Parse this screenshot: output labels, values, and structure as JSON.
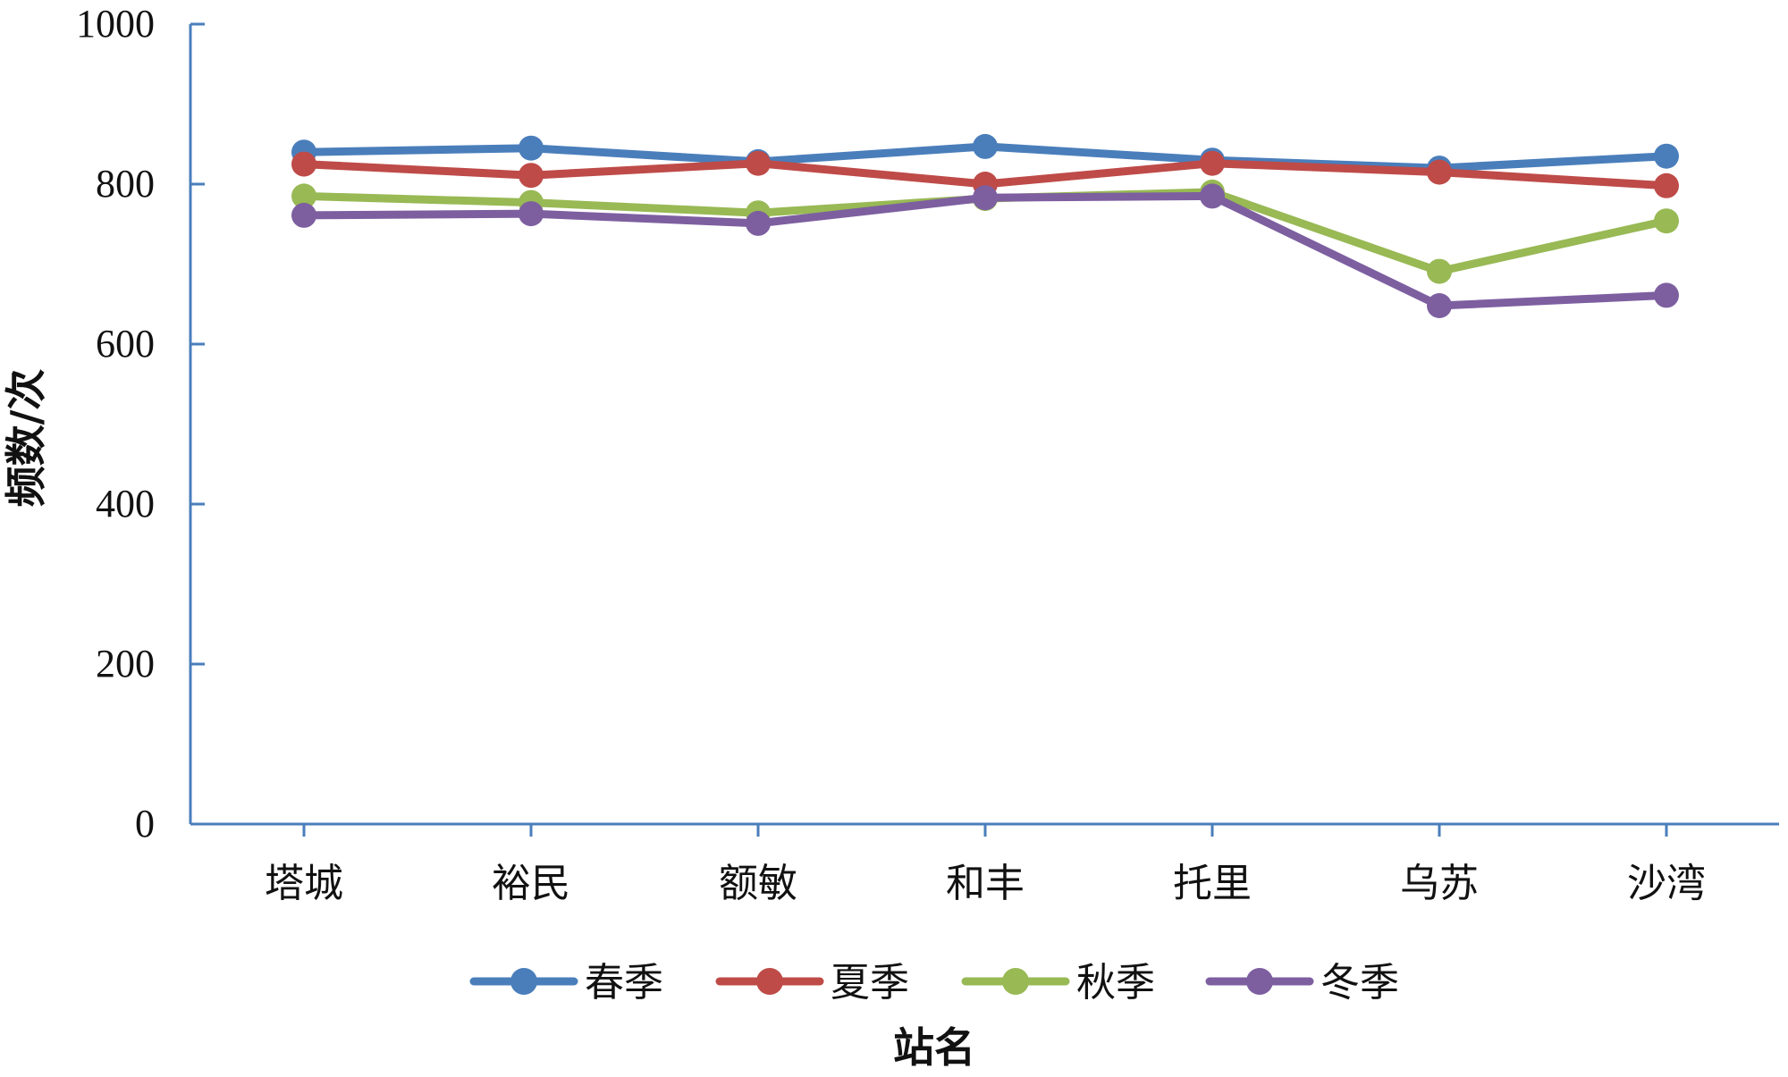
{
  "chart_data": {
    "type": "line",
    "xlabel": "站名",
    "ylabel": "频数/次",
    "ylim": [
      0,
      1000
    ],
    "yticks": [
      0,
      200,
      400,
      600,
      800,
      1000
    ],
    "grid": false,
    "legend_position": "bottom",
    "categories": [
      "塔城",
      "裕民",
      "额敏",
      "和丰",
      "托里",
      "乌苏",
      "沙湾"
    ],
    "series": [
      {
        "name": "春季",
        "color": "#4a7ebb",
        "values": [
          840,
          845,
          828,
          847,
          830,
          820,
          835
        ]
      },
      {
        "name": "夏季",
        "color": "#be4b48",
        "values": [
          825,
          811,
          826,
          800,
          826,
          815,
          798
        ]
      },
      {
        "name": "秋季",
        "color": "#98b954",
        "values": [
          785,
          777,
          764,
          782,
          790,
          691,
          754
        ]
      },
      {
        "name": "冬季",
        "color": "#7d5fa0",
        "values": [
          761,
          763,
          751,
          783,
          785,
          648,
          661
        ]
      }
    ]
  }
}
